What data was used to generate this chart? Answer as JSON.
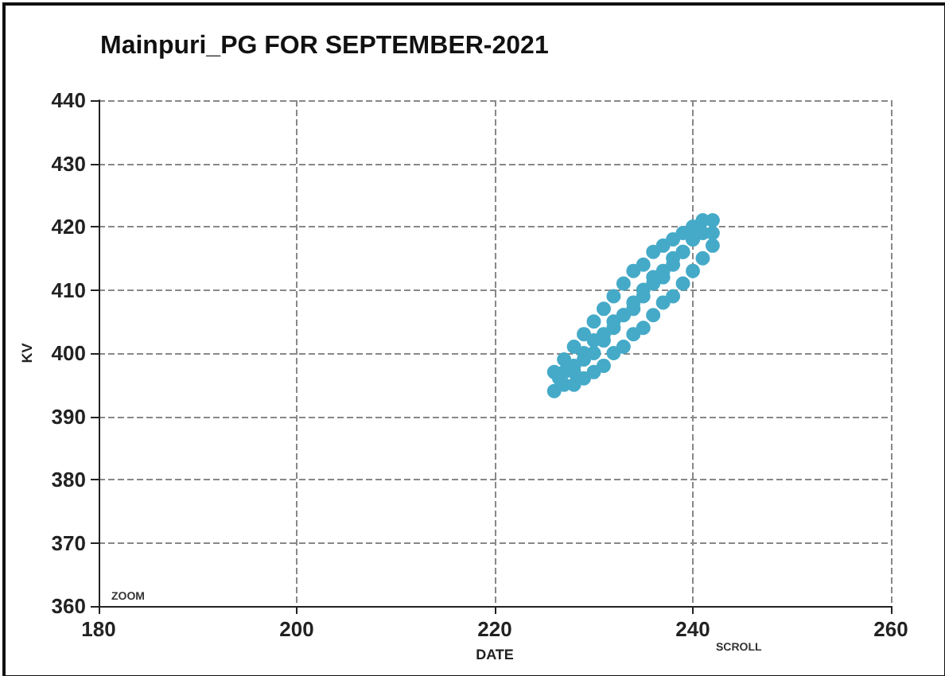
{
  "chart_data": {
    "type": "scatter",
    "title": "Mainpuri_PG FOR SEPTEMBER-2021",
    "xlabel": "DATE",
    "ylabel": "KV",
    "annotations": [
      "ZOOM",
      "SCROLL"
    ],
    "xlim": [
      180,
      260
    ],
    "xticks": [
      180,
      200,
      220,
      240,
      260
    ],
    "ylim": [
      360,
      440
    ],
    "yticks": [
      360,
      370,
      380,
      390,
      400,
      410,
      420,
      430,
      440
    ],
    "grid": true,
    "marker": "circle",
    "series": [
      {
        "color": "#45aac8",
        "x": [
          226,
          226.5,
          227,
          227,
          228,
          228,
          229,
          229,
          230,
          230,
          231,
          231,
          232,
          232,
          233,
          233,
          234,
          234,
          235,
          235,
          236,
          236,
          237,
          237,
          238,
          238,
          239,
          239,
          240,
          240,
          241,
          241,
          242,
          226,
          227,
          228,
          229,
          230,
          231,
          232,
          233,
          234,
          235,
          236,
          237,
          238,
          239,
          240,
          228,
          229,
          230,
          231,
          232,
          233,
          234,
          235,
          236,
          237,
          238,
          239,
          240,
          241,
          242,
          242
        ],
        "values": [
          394,
          396,
          395,
          399,
          397,
          401,
          399,
          403,
          400,
          405,
          402,
          407,
          404,
          409,
          406,
          411,
          407,
          413,
          409,
          414,
          411,
          416,
          412,
          417,
          414,
          418,
          416,
          419,
          418,
          420,
          419,
          421,
          421,
          397,
          397,
          398,
          400,
          402,
          403,
          405,
          406,
          408,
          410,
          412,
          413,
          415,
          416,
          418,
          395,
          396,
          397,
          398,
          400,
          401,
          403,
          404,
          406,
          408,
          409,
          411,
          413,
          415,
          417,
          419
        ]
      }
    ]
  }
}
